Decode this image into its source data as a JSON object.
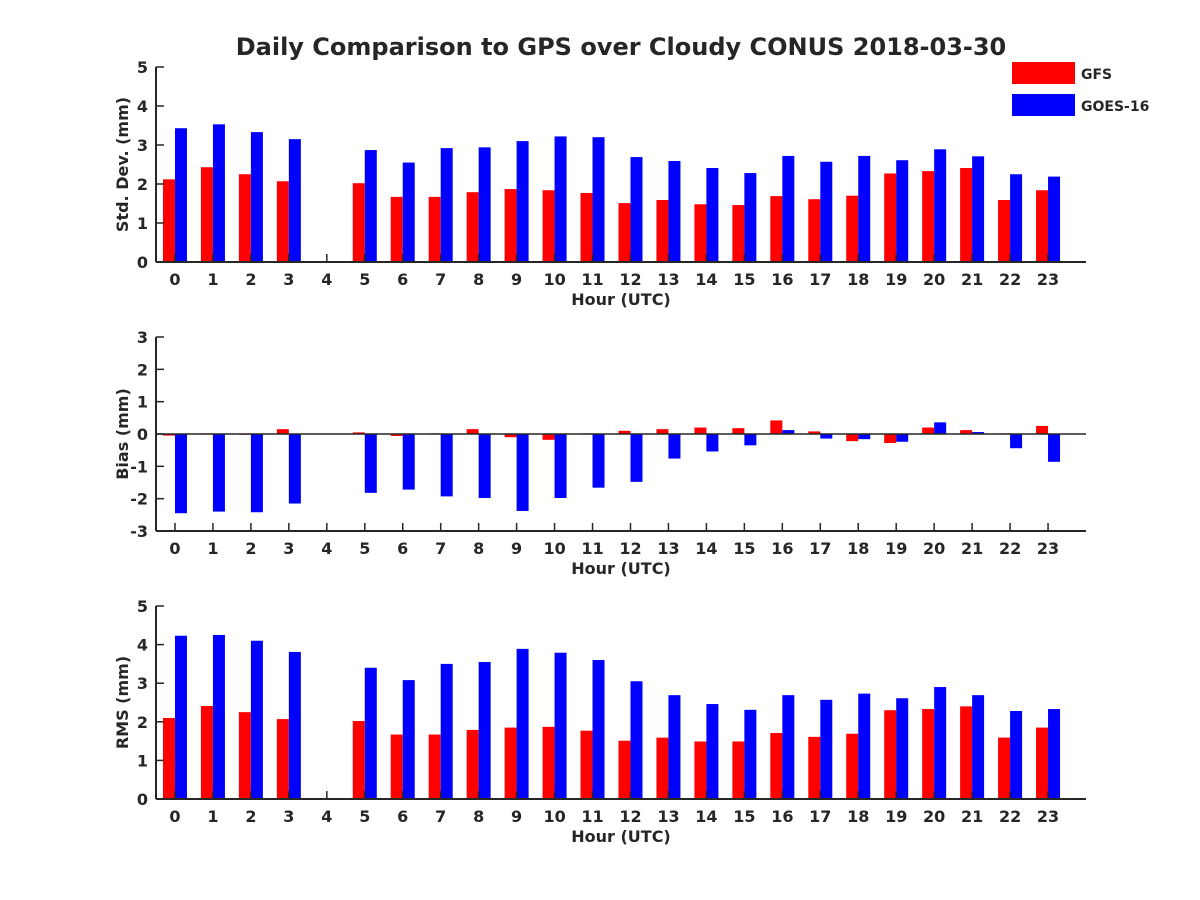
{
  "title": "Daily Comparison to GPS over Cloudy CONUS 2018-03-30",
  "legend": {
    "placement": "top-right",
    "items": [
      {
        "label": "GFS",
        "color": "#ff0000"
      },
      {
        "label": "GOES-16",
        "color": "#0000ff"
      }
    ]
  },
  "chart_data": [
    {
      "type": "bar",
      "xlabel": "Hour (UTC)",
      "ylabel": "Std. Dev. (mm)",
      "ylim": [
        0,
        5
      ],
      "yticks": [
        0,
        1,
        2,
        3,
        4,
        5
      ],
      "categories": [
        "0",
        "1",
        "2",
        "3",
        "4",
        "5",
        "6",
        "7",
        "8",
        "9",
        "10",
        "11",
        "12",
        "13",
        "14",
        "15",
        "16",
        "17",
        "18",
        "19",
        "20",
        "21",
        "22",
        "23"
      ],
      "series": [
        {
          "name": "GFS",
          "color": "#ff0000",
          "values": [
            2.12,
            2.43,
            2.25,
            2.07,
            null,
            2.02,
            1.67,
            1.67,
            1.79,
            1.87,
            1.84,
            1.77,
            1.51,
            1.59,
            1.48,
            1.46,
            1.69,
            1.61,
            1.7,
            2.27,
            2.33,
            2.41,
            1.59,
            1.84
          ]
        },
        {
          "name": "GOES-16",
          "color": "#0000ff",
          "values": [
            3.43,
            3.53,
            3.33,
            3.15,
            null,
            2.87,
            2.55,
            2.92,
            2.94,
            3.1,
            3.22,
            3.2,
            2.69,
            2.59,
            2.41,
            2.28,
            2.72,
            2.57,
            2.72,
            2.61,
            2.89,
            2.71,
            2.25,
            2.19
          ]
        }
      ]
    },
    {
      "type": "bar",
      "xlabel": "Hour (UTC)",
      "ylabel": "Bias (mm)",
      "ylim": [
        -3,
        3
      ],
      "yticks": [
        -3,
        -2,
        -1,
        0,
        1,
        2,
        3
      ],
      "categories": [
        "0",
        "1",
        "2",
        "3",
        "4",
        "5",
        "6",
        "7",
        "8",
        "9",
        "10",
        "11",
        "12",
        "13",
        "14",
        "15",
        "16",
        "17",
        "18",
        "19",
        "20",
        "21",
        "22",
        "23"
      ],
      "series": [
        {
          "name": "GFS",
          "color": "#ff0000",
          "values": [
            -0.05,
            0.02,
            0.0,
            0.15,
            null,
            0.05,
            -0.06,
            0.02,
            0.15,
            -0.1,
            -0.18,
            0.02,
            0.1,
            0.15,
            0.2,
            0.18,
            0.42,
            0.08,
            -0.22,
            -0.28,
            0.2,
            0.12,
            0.02,
            0.25
          ]
        },
        {
          "name": "GOES-16",
          "color": "#0000ff",
          "values": [
            -2.45,
            -2.4,
            -2.42,
            -2.15,
            null,
            -1.82,
            -1.72,
            -1.93,
            -1.98,
            -2.38,
            -1.98,
            -1.66,
            -1.48,
            -0.76,
            -0.54,
            -0.35,
            0.12,
            -0.14,
            -0.16,
            -0.24,
            0.36,
            0.06,
            -0.44,
            -0.86
          ]
        }
      ]
    },
    {
      "type": "bar",
      "xlabel": "Hour (UTC)",
      "ylabel": "RMS (mm)",
      "ylim": [
        0,
        5
      ],
      "yticks": [
        0,
        1,
        2,
        3,
        4,
        5
      ],
      "categories": [
        "0",
        "1",
        "2",
        "3",
        "4",
        "5",
        "6",
        "7",
        "8",
        "9",
        "10",
        "11",
        "12",
        "13",
        "14",
        "15",
        "16",
        "17",
        "18",
        "19",
        "20",
        "21",
        "22",
        "23"
      ],
      "series": [
        {
          "name": "GFS",
          "color": "#ff0000",
          "values": [
            2.1,
            2.41,
            2.25,
            2.07,
            null,
            2.02,
            1.67,
            1.67,
            1.79,
            1.85,
            1.87,
            1.77,
            1.51,
            1.59,
            1.49,
            1.49,
            1.71,
            1.61,
            1.69,
            2.3,
            2.33,
            2.4,
            1.59,
            1.85
          ]
        },
        {
          "name": "GOES-16",
          "color": "#0000ff",
          "values": [
            4.23,
            4.25,
            4.1,
            3.81,
            null,
            3.4,
            3.08,
            3.5,
            3.55,
            3.89,
            3.79,
            3.6,
            3.05,
            2.69,
            2.46,
            2.31,
            2.69,
            2.57,
            2.73,
            2.61,
            2.9,
            2.69,
            2.28,
            2.33
          ]
        }
      ]
    }
  ]
}
